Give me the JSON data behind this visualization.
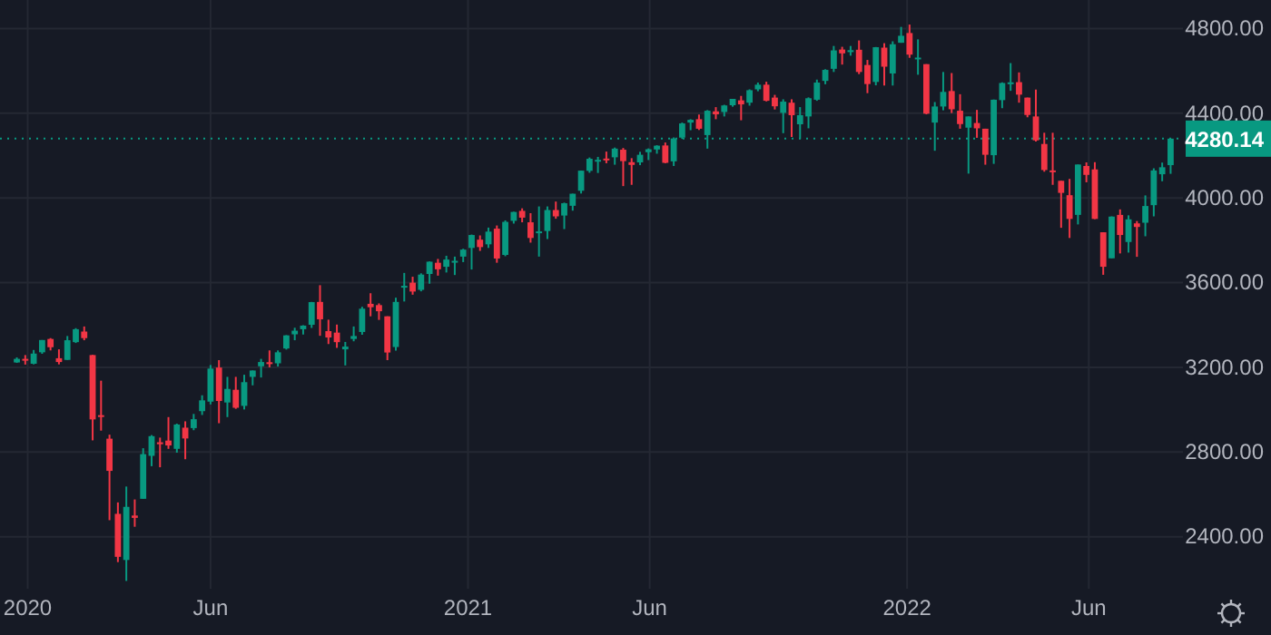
{
  "chart_data": {
    "type": "candlestick",
    "x": [
      "2019-12-23",
      "2019-12-30",
      "2020-01-06",
      "2020-01-13",
      "2020-01-20",
      "2020-01-27",
      "2020-02-03",
      "2020-02-10",
      "2020-02-17",
      "2020-02-24",
      "2020-03-02",
      "2020-03-09",
      "2020-03-16",
      "2020-03-23",
      "2020-03-30",
      "2020-04-06",
      "2020-04-13",
      "2020-04-20",
      "2020-04-27",
      "2020-05-04",
      "2020-05-11",
      "2020-05-18",
      "2020-05-25",
      "2020-06-01",
      "2020-06-08",
      "2020-06-15",
      "2020-06-22",
      "2020-06-29",
      "2020-07-06",
      "2020-07-13",
      "2020-07-20",
      "2020-07-27",
      "2020-08-03",
      "2020-08-10",
      "2020-08-17",
      "2020-08-24",
      "2020-08-31",
      "2020-09-07",
      "2020-09-14",
      "2020-09-21",
      "2020-09-28",
      "2020-10-05",
      "2020-10-12",
      "2020-10-19",
      "2020-10-26",
      "2020-11-02",
      "2020-11-09",
      "2020-11-16",
      "2020-11-23",
      "2020-11-30",
      "2020-12-07",
      "2020-12-14",
      "2020-12-21",
      "2020-12-28",
      "2021-01-04",
      "2021-01-11",
      "2021-01-18",
      "2021-01-25",
      "2021-02-01",
      "2021-02-08",
      "2021-02-15",
      "2021-02-22",
      "2021-03-01",
      "2021-03-08",
      "2021-03-15",
      "2021-03-22",
      "2021-03-29",
      "2021-04-05",
      "2021-04-12",
      "2021-04-19",
      "2021-04-26",
      "2021-05-03",
      "2021-05-10",
      "2021-05-17",
      "2021-05-24",
      "2021-05-31",
      "2021-06-07",
      "2021-06-14",
      "2021-06-21",
      "2021-06-28",
      "2021-07-05",
      "2021-07-12",
      "2021-07-19",
      "2021-07-26",
      "2021-08-02",
      "2021-08-09",
      "2021-08-16",
      "2021-08-23",
      "2021-08-30",
      "2021-09-06",
      "2021-09-13",
      "2021-09-20",
      "2021-09-27",
      "2021-10-04",
      "2021-10-11",
      "2021-10-18",
      "2021-10-25",
      "2021-11-01",
      "2021-11-08",
      "2021-11-15",
      "2021-11-22",
      "2021-11-29",
      "2021-12-06",
      "2021-12-13",
      "2021-12-20",
      "2021-12-27",
      "2022-01-03",
      "2022-01-10",
      "2022-01-17",
      "2022-01-24",
      "2022-01-31",
      "2022-02-07",
      "2022-02-14",
      "2022-02-21",
      "2022-02-28",
      "2022-03-07",
      "2022-03-14",
      "2022-03-21",
      "2022-03-28",
      "2022-04-04",
      "2022-04-11",
      "2022-04-18",
      "2022-04-25",
      "2022-05-02",
      "2022-05-09",
      "2022-05-16",
      "2022-05-23",
      "2022-05-30",
      "2022-06-06",
      "2022-06-13",
      "2022-06-20",
      "2022-06-27",
      "2022-07-04",
      "2022-07-11",
      "2022-07-18",
      "2022-07-25",
      "2022-08-01",
      "2022-08-08"
    ],
    "ohlc": [
      [
        3223,
        3247,
        3221,
        3240
      ],
      [
        3240,
        3258,
        3213,
        3235
      ],
      [
        3217,
        3282,
        3214,
        3265
      ],
      [
        3271,
        3329,
        3264,
        3329
      ],
      [
        3334,
        3338,
        3280,
        3295
      ],
      [
        3243,
        3285,
        3214,
        3225
      ],
      [
        3235,
        3348,
        3235,
        3328
      ],
      [
        3319,
        3385,
        3315,
        3380
      ],
      [
        3369,
        3393,
        3328,
        3338
      ],
      [
        3258,
        3259,
        2855,
        2954
      ],
      [
        2974,
        3137,
        2901,
        2972
      ],
      [
        2863,
        2882,
        2478,
        2711
      ],
      [
        2508,
        2562,
        2280,
        2305
      ],
      [
        2290,
        2637,
        2191,
        2541
      ],
      [
        2500,
        2576,
        2447,
        2489
      ],
      [
        2579,
        2818,
        2579,
        2790
      ],
      [
        2782,
        2880,
        2733,
        2875
      ],
      [
        2846,
        2868,
        2728,
        2837
      ],
      [
        2854,
        2965,
        2815,
        2831
      ],
      [
        2815,
        2934,
        2797,
        2930
      ],
      [
        2915,
        2945,
        2766,
        2864
      ],
      [
        2913,
        2980,
        2903,
        2955
      ],
      [
        2993,
        3068,
        2975,
        3044
      ],
      [
        3038,
        3211,
        3025,
        3194
      ],
      [
        3199,
        3234,
        2936,
        3041
      ],
      [
        3034,
        3155,
        2965,
        3098
      ],
      [
        3094,
        3155,
        3004,
        3009
      ],
      [
        3018,
        3165,
        3001,
        3130
      ],
      [
        3155,
        3185,
        3115,
        3185
      ],
      [
        3205,
        3240,
        3152,
        3225
      ],
      [
        3224,
        3280,
        3200,
        3216
      ],
      [
        3219,
        3280,
        3204,
        3271
      ],
      [
        3289,
        3352,
        3284,
        3351
      ],
      [
        3356,
        3387,
        3328,
        3373
      ],
      [
        3380,
        3399,
        3355,
        3397
      ],
      [
        3401,
        3509,
        3386,
        3508
      ],
      [
        3509,
        3588,
        3349,
        3427
      ],
      [
        3371,
        3425,
        3310,
        3341
      ],
      [
        3364,
        3402,
        3292,
        3319
      ],
      [
        3285,
        3320,
        3209,
        3298
      ],
      [
        3334,
        3393,
        3323,
        3348
      ],
      [
        3367,
        3486,
        3354,
        3477
      ],
      [
        3500,
        3550,
        3441,
        3484
      ],
      [
        3494,
        3502,
        3424,
        3465
      ],
      [
        3441,
        3441,
        3234,
        3270
      ],
      [
        3296,
        3529,
        3279,
        3509
      ],
      [
        3583,
        3646,
        3511,
        3585
      ],
      [
        3600,
        3628,
        3543,
        3558
      ],
      [
        3566,
        3644,
        3559,
        3638
      ],
      [
        3641,
        3700,
        3595,
        3699
      ],
      [
        3694,
        3712,
        3633,
        3663
      ],
      [
        3675,
        3727,
        3648,
        3709
      ],
      [
        3698,
        3723,
        3636,
        3703
      ],
      [
        3723,
        3760,
        3697,
        3756
      ],
      [
        3764,
        3827,
        3662,
        3825
      ],
      [
        3803,
        3823,
        3750,
        3768
      ],
      [
        3781,
        3860,
        3764,
        3841
      ],
      [
        3855,
        3870,
        3694,
        3714
      ],
      [
        3731,
        3894,
        3725,
        3887
      ],
      [
        3892,
        3935,
        3879,
        3934
      ],
      [
        3939,
        3951,
        3885,
        3907
      ],
      [
        3885,
        3928,
        3789,
        3811
      ],
      [
        3842,
        3960,
        3723,
        3842
      ],
      [
        3844,
        3960,
        3806,
        3943
      ],
      [
        3943,
        3983,
        3902,
        3913
      ],
      [
        3917,
        3978,
        3853,
        3975
      ],
      [
        3963,
        4020,
        3940,
        4020
      ],
      [
        4034,
        4129,
        4021,
        4129
      ],
      [
        4128,
        4191,
        4119,
        4185
      ],
      [
        4179,
        4194,
        4118,
        4180
      ],
      [
        4186,
        4219,
        4164,
        4181
      ],
      [
        4192,
        4238,
        4157,
        4233
      ],
      [
        4228,
        4236,
        4056,
        4174
      ],
      [
        4169,
        4188,
        4062,
        4156
      ],
      [
        4168,
        4218,
        4155,
        4204
      ],
      [
        4216,
        4234,
        4179,
        4230
      ],
      [
        4229,
        4249,
        4209,
        4247
      ],
      [
        4248,
        4262,
        4164,
        4166
      ],
      [
        4173,
        4286,
        4151,
        4281
      ],
      [
        4285,
        4356,
        4279,
        4352
      ],
      [
        4356,
        4372,
        4320,
        4369
      ],
      [
        4372,
        4394,
        4321,
        4327
      ],
      [
        4297,
        4415,
        4233,
        4412
      ],
      [
        4409,
        4429,
        4372,
        4395
      ],
      [
        4406,
        4440,
        4385,
        4437
      ],
      [
        4438,
        4468,
        4431,
        4468
      ],
      [
        4461,
        4482,
        4367,
        4442
      ],
      [
        4450,
        4513,
        4436,
        4509
      ],
      [
        4513,
        4545,
        4504,
        4535
      ],
      [
        4535,
        4549,
        4456,
        4459
      ],
      [
        4474,
        4487,
        4418,
        4433
      ],
      [
        4402,
        4466,
        4306,
        4455
      ],
      [
        4450,
        4466,
        4288,
        4391
      ],
      [
        4348,
        4429,
        4278,
        4391
      ],
      [
        4385,
        4475,
        4329,
        4471
      ],
      [
        4464,
        4559,
        4459,
        4545
      ],
      [
        4553,
        4608,
        4537,
        4605
      ],
      [
        4610,
        4718,
        4595,
        4697
      ],
      [
        4701,
        4714,
        4630,
        4683
      ],
      [
        4689,
        4718,
        4672,
        4698
      ],
      [
        4700,
        4744,
        4585,
        4595
      ],
      [
        4628,
        4652,
        4495,
        4538
      ],
      [
        4548,
        4713,
        4532,
        4712
      ],
      [
        4710,
        4731,
        4531,
        4620
      ],
      [
        4588,
        4740,
        4531,
        4726
      ],
      [
        4733,
        4808,
        4733,
        4766
      ],
      [
        4779,
        4819,
        4662,
        4677
      ],
      [
        4655,
        4749,
        4582,
        4663
      ],
      [
        4632,
        4632,
        4395,
        4398
      ],
      [
        4356,
        4453,
        4223,
        4432
      ],
      [
        4432,
        4595,
        4414,
        4501
      ],
      [
        4505,
        4590,
        4401,
        4419
      ],
      [
        4412,
        4490,
        4327,
        4349
      ],
      [
        4332,
        4385,
        4115,
        4385
      ],
      [
        4354,
        4416,
        4284,
        4329
      ],
      [
        4327,
        4327,
        4157,
        4204
      ],
      [
        4202,
        4465,
        4161,
        4464
      ],
      [
        4462,
        4546,
        4424,
        4543
      ],
      [
        4541,
        4637,
        4506,
        4546
      ],
      [
        4547,
        4593,
        4450,
        4488
      ],
      [
        4474,
        4474,
        4381,
        4392
      ],
      [
        4385,
        4512,
        4267,
        4272
      ],
      [
        4255,
        4308,
        4124,
        4132
      ],
      [
        4130,
        4308,
        4062,
        4123
      ],
      [
        4081,
        4081,
        3859,
        4024
      ],
      [
        4013,
        4090,
        3811,
        3901
      ],
      [
        3920,
        4158,
        3875,
        4158
      ],
      [
        4151,
        4168,
        4074,
        4109
      ],
      [
        4135,
        4169,
        3900,
        3901
      ],
      [
        3838,
        3838,
        3637,
        3675
      ],
      [
        3715,
        3913,
        3715,
        3912
      ],
      [
        3920,
        3946,
        3738,
        3825
      ],
      [
        3792,
        3918,
        3742,
        3899
      ],
      [
        3880,
        3891,
        3722,
        3863
      ],
      [
        3883,
        4012,
        3819,
        3962
      ],
      [
        3966,
        4140,
        3913,
        4130
      ],
      [
        4112,
        4167,
        4079,
        4145
      ],
      [
        4155,
        4280.14,
        4114,
        4280.14
      ]
    ],
    "xlim": [
      "2019-12-09",
      "2022-08-19"
    ],
    "xticks": [
      {
        "value": "2020-01-01",
        "label": "2020"
      },
      {
        "value": "2020-06-01",
        "label": "Jun"
      },
      {
        "value": "2021-01-01",
        "label": "2021"
      },
      {
        "value": "2021-06-01",
        "label": "Jun"
      },
      {
        "value": "2022-01-01",
        "label": "2022"
      },
      {
        "value": "2022-06-01",
        "label": "Jun"
      }
    ],
    "ylim": [
      2150,
      4935
    ],
    "yticks": [
      {
        "value": 2400,
        "label": "2400.00"
      },
      {
        "value": 2800,
        "label": "2800.00"
      },
      {
        "value": 3200,
        "label": "3200.00"
      },
      {
        "value": 3600,
        "label": "3600.00"
      },
      {
        "value": 4000,
        "label": "4000.00"
      },
      {
        "value": 4400,
        "label": "4400.00"
      },
      {
        "value": 4800,
        "label": "4800.00"
      }
    ],
    "ref_lines": [
      {
        "axis": "y",
        "value": 4280.14,
        "label": "4280.14",
        "color": "#089981",
        "line_style": "dotted"
      }
    ],
    "grid": true
  }
}
